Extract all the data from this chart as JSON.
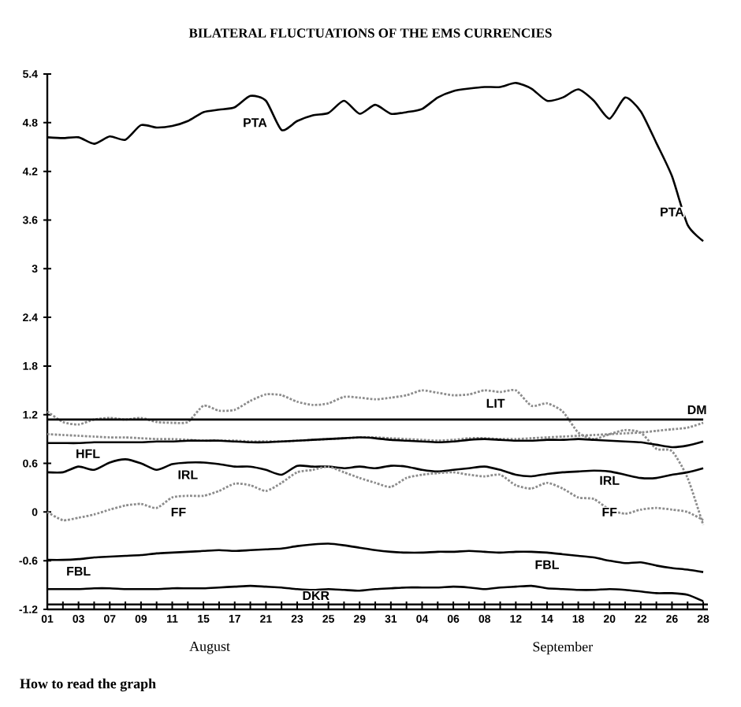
{
  "chart_data": {
    "type": "line",
    "title": "BILATERAL FLUCTUATIONS OF THE EMS CURRENCIES",
    "categories": [
      "01",
      null,
      "03",
      null,
      "07",
      null,
      "09",
      null,
      "11",
      null,
      "15",
      null,
      "17",
      null,
      "21",
      null,
      "23",
      null,
      "25",
      null,
      "29",
      null,
      "31",
      null,
      "04",
      null,
      "06",
      null,
      "08",
      null,
      "12",
      null,
      "14",
      null,
      "18",
      null,
      "20",
      null,
      "22",
      null,
      "26",
      null,
      "28"
    ],
    "ylim": [
      -1.2,
      5.4
    ],
    "yticks": [
      5.4,
      4.8,
      4.2,
      3.6,
      3,
      2.4,
      1.8,
      1.2,
      0.6,
      0,
      -0.6,
      -1.2
    ],
    "grid": false,
    "series": [
      {
        "name": "PTA",
        "color": "#000000",
        "line_style": "solid",
        "values": [
          4.62,
          4.61,
          4.62,
          4.54,
          4.63,
          4.59,
          4.77,
          4.74,
          4.76,
          4.82,
          4.93,
          4.96,
          4.99,
          5.13,
          5.07,
          4.71,
          4.82,
          4.89,
          4.92,
          5.07,
          4.91,
          5.02,
          4.91,
          4.93,
          4.97,
          5.11,
          5.19,
          5.22,
          5.24,
          5.24,
          5.29,
          5.22,
          5.07,
          5.11,
          5.21,
          5.07,
          4.85,
          5.11,
          4.94,
          4.55,
          4.14,
          3.54,
          3.34
        ]
      },
      {
        "name": "LIT",
        "color": "#8c8c8c",
        "line_style": "dotted",
        "values": [
          1.24,
          1.11,
          1.08,
          1.14,
          1.16,
          1.14,
          1.16,
          1.11,
          1.1,
          1.11,
          1.31,
          1.25,
          1.26,
          1.37,
          1.45,
          1.44,
          1.36,
          1.32,
          1.34,
          1.42,
          1.41,
          1.39,
          1.41,
          1.44,
          1.5,
          1.47,
          1.44,
          1.45,
          1.5,
          1.48,
          1.5,
          1.31,
          1.34,
          1.24,
          0.98,
          0.9,
          0.96,
          1.01,
          0.98,
          0.78,
          0.75,
          0.42,
          -0.16
        ]
      },
      {
        "name": "DM",
        "color": "#000000",
        "line_style": "solid",
        "values": [
          1.14,
          1.14,
          1.14,
          1.14,
          1.14,
          1.14,
          1.14,
          1.14,
          1.14,
          1.14,
          1.14,
          1.14,
          1.14,
          1.14,
          1.14,
          1.14,
          1.14,
          1.14,
          1.14,
          1.14,
          1.14,
          1.14,
          1.14,
          1.14,
          1.14,
          1.14,
          1.14,
          1.14,
          1.14,
          1.14,
          1.14,
          1.14,
          1.14,
          1.14,
          1.14,
          1.14,
          1.14,
          1.14,
          1.14,
          1.14,
          1.14,
          1.14,
          1.14
        ]
      },
      {
        "color": "#8c8c8c",
        "line_style": "dotted",
        "values": [
          0.96,
          0.95,
          0.94,
          0.93,
          0.92,
          0.92,
          0.91,
          0.9,
          0.9,
          0.89,
          0.88,
          0.88,
          0.88,
          0.87,
          0.87,
          0.87,
          0.88,
          0.89,
          0.9,
          0.91,
          0.92,
          0.92,
          0.91,
          0.9,
          0.89,
          0.88,
          0.89,
          0.91,
          0.91,
          0.9,
          0.9,
          0.91,
          0.92,
          0.93,
          0.94,
          0.95,
          0.96,
          0.97,
          0.98,
          1.0,
          1.02,
          1.04,
          1.1
        ]
      },
      {
        "name": "HFL",
        "color": "#000000",
        "line_style": "solid",
        "values": [
          0.85,
          0.85,
          0.85,
          0.86,
          0.86,
          0.86,
          0.86,
          0.87,
          0.87,
          0.88,
          0.88,
          0.88,
          0.87,
          0.86,
          0.86,
          0.87,
          0.88,
          0.89,
          0.9,
          0.91,
          0.92,
          0.91,
          0.89,
          0.88,
          0.87,
          0.86,
          0.87,
          0.89,
          0.9,
          0.89,
          0.88,
          0.88,
          0.89,
          0.89,
          0.9,
          0.89,
          0.88,
          0.87,
          0.86,
          0.83,
          0.8,
          0.82,
          0.87
        ]
      },
      {
        "name": "IRL",
        "color": "#000000",
        "line_style": "solid",
        "values": [
          0.49,
          0.49,
          0.56,
          0.52,
          0.61,
          0.65,
          0.6,
          0.52,
          0.59,
          0.61,
          0.61,
          0.59,
          0.56,
          0.56,
          0.52,
          0.46,
          0.57,
          0.56,
          0.56,
          0.54,
          0.56,
          0.54,
          0.57,
          0.56,
          0.52,
          0.5,
          0.52,
          0.54,
          0.56,
          0.52,
          0.46,
          0.44,
          0.47,
          0.49,
          0.5,
          0.51,
          0.5,
          0.46,
          0.42,
          0.42,
          0.46,
          0.49,
          0.54
        ]
      },
      {
        "name": "FF",
        "color": "#8c8c8c",
        "line_style": "dotted",
        "values": [
          0.0,
          -0.1,
          -0.07,
          -0.03,
          0.03,
          0.08,
          0.1,
          0.05,
          0.18,
          0.2,
          0.2,
          0.26,
          0.35,
          0.33,
          0.26,
          0.36,
          0.49,
          0.52,
          0.56,
          0.49,
          0.42,
          0.36,
          0.31,
          0.42,
          0.46,
          0.48,
          0.49,
          0.46,
          0.44,
          0.46,
          0.33,
          0.29,
          0.36,
          0.29,
          0.18,
          0.16,
          0.03,
          -0.02,
          0.03,
          0.05,
          0.03,
          0.0,
          -0.1
        ]
      },
      {
        "name": "FBL",
        "color": "#000000",
        "line_style": "solid",
        "values": [
          -0.59,
          -0.59,
          -0.58,
          -0.56,
          -0.55,
          -0.54,
          -0.53,
          -0.51,
          -0.5,
          -0.49,
          -0.48,
          -0.47,
          -0.48,
          -0.47,
          -0.46,
          -0.45,
          -0.42,
          -0.4,
          -0.39,
          -0.41,
          -0.44,
          -0.47,
          -0.49,
          -0.5,
          -0.5,
          -0.49,
          -0.49,
          -0.48,
          -0.49,
          -0.5,
          -0.49,
          -0.49,
          -0.5,
          -0.52,
          -0.54,
          -0.56,
          -0.6,
          -0.63,
          -0.62,
          -0.66,
          -0.69,
          -0.71,
          -0.74
        ]
      },
      {
        "name": "DKR",
        "color": "#000000",
        "line_style": "solid",
        "values": [
          -0.95,
          -0.95,
          -0.95,
          -0.94,
          -0.94,
          -0.95,
          -0.95,
          -0.95,
          -0.94,
          -0.94,
          -0.94,
          -0.93,
          -0.92,
          -0.91,
          -0.92,
          -0.93,
          -0.95,
          -0.96,
          -0.95,
          -0.96,
          -0.97,
          -0.95,
          -0.94,
          -0.93,
          -0.93,
          -0.93,
          -0.92,
          -0.93,
          -0.95,
          -0.93,
          -0.92,
          -0.91,
          -0.94,
          -0.95,
          -0.96,
          -0.96,
          -0.95,
          -0.96,
          -0.98,
          -1.0,
          -1.0,
          -1.02,
          -1.1
        ]
      }
    ],
    "ref_lines": [
      {
        "axis": "y",
        "value": -1.14,
        "color": "#000000",
        "line_style": "solid"
      }
    ],
    "annotations": [
      {
        "text": "PTA",
        "x": "26",
        "y": 3.7
      },
      {
        "text": "IRL",
        "x": "20",
        "y": 0.39
      },
      {
        "text": "FF",
        "x": "20",
        "y": 0.0
      },
      {
        "text": "FBL",
        "x": "14",
        "y": -0.65
      },
      "August",
      "September",
      "How to read the graph"
    ]
  }
}
